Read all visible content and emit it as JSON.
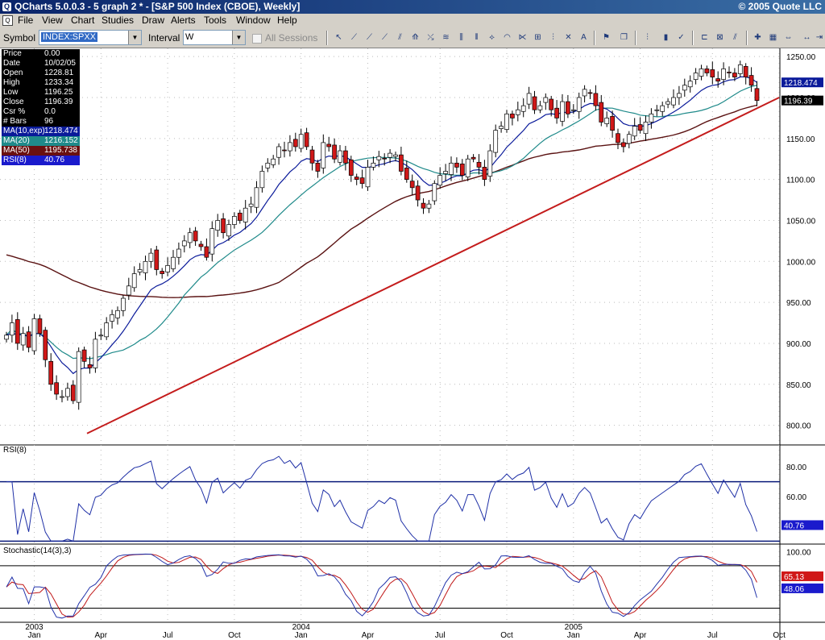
{
  "window": {
    "title": "QCharts 5.0.0.3 - 5 graph 2 * - [S&P 500 Index (CBOE), Weekly]",
    "copyright": "© 2005 Quote LLC"
  },
  "menu": [
    "File",
    "View",
    "Chart",
    "Studies",
    "Draw",
    "Alerts",
    "Tools",
    "Window",
    "Help"
  ],
  "toolbar": {
    "symbol_label": "Symbol",
    "symbol_value": "INDEX:SPXX",
    "interval_label": "Interval",
    "interval_value": "W",
    "all_sessions_label": "All Sessions"
  },
  "info_box": [
    {
      "k": "Price",
      "v": "0.00"
    },
    {
      "k": "Date",
      "v": "10/02/05"
    },
    {
      "k": "Open",
      "v": "1228.81"
    },
    {
      "k": "High",
      "v": "1233.34"
    },
    {
      "k": "Low",
      "v": "1196.25"
    },
    {
      "k": "Close",
      "v": "1196.39"
    },
    {
      "k": "Csr %",
      "v": "0.0"
    },
    {
      "k": "# Bars",
      "v": "96"
    },
    {
      "k": "MA(10,exp)",
      "v": "1218.474"
    },
    {
      "k": "MA(20)",
      "v": "1216.152"
    },
    {
      "k": "MA(50)",
      "v": "1195.738"
    },
    {
      "k": "RSI(8)",
      "v": "40.76"
    }
  ],
  "colors": {
    "up": "#ffffff",
    "down": "#d01818",
    "ma10": "#0a1a9a",
    "ma20": "#1f8a8a",
    "ma50": "#5a1212",
    "trend": "#c41c1c",
    "rsi": "#1e2fa6",
    "stoch_k": "#2233aa",
    "stoch_d": "#c01818",
    "level": "#0a1a7a"
  },
  "chart_data": [
    {
      "type": "candlestick",
      "title": "S&P 500 Index (CBOE), Weekly",
      "y_ticks": [
        800,
        850,
        900,
        950,
        1000,
        1050,
        1100,
        1150,
        1200,
        1250
      ],
      "ylim": [
        776,
        1260
      ],
      "x_labels": [
        {
          "m": "Jan",
          "y": "2003",
          "i": 5
        },
        {
          "m": "Apr",
          "y": "",
          "i": 17
        },
        {
          "m": "Jul",
          "y": "",
          "i": 29
        },
        {
          "m": "Oct",
          "y": "",
          "i": 41
        },
        {
          "m": "Jan",
          "y": "2004",
          "i": 53
        },
        {
          "m": "Apr",
          "y": "",
          "i": 65
        },
        {
          "m": "Jul",
          "y": "",
          "i": 78
        },
        {
          "m": "Oct",
          "y": "",
          "i": 90
        },
        {
          "m": "Jan",
          "y": "2005",
          "i": 102
        },
        {
          "m": "Apr",
          "y": "",
          "i": 114
        },
        {
          "m": "Jul",
          "y": "",
          "i": 127
        },
        {
          "m": "Oct",
          "y": "",
          "i": 139
        }
      ],
      "closes": [
        910,
        925,
        900,
        912,
        895,
        930,
        912,
        880,
        850,
        838,
        835,
        845,
        830,
        890,
        878,
        870,
        905,
        910,
        925,
        935,
        940,
        955,
        970,
        985,
        990,
        1000,
        1010,
        990,
        985,
        995,
        1005,
        1015,
        1025,
        1035,
        1025,
        1018,
        1005,
        1040,
        1050,
        1035,
        1045,
        1055,
        1050,
        1065,
        1070,
        1090,
        1110,
        1120,
        1125,
        1140,
        1135,
        1145,
        1140,
        1155,
        1140,
        1120,
        1110,
        1145,
        1140,
        1125,
        1135,
        1120,
        1105,
        1100,
        1095,
        1115,
        1120,
        1128,
        1125,
        1132,
        1130,
        1110,
        1100,
        1090,
        1075,
        1065,
        1070,
        1095,
        1105,
        1110,
        1120,
        1115,
        1105,
        1125,
        1125,
        1115,
        1100,
        1135,
        1160,
        1165,
        1180,
        1175,
        1185,
        1190,
        1205,
        1185,
        1190,
        1200,
        1185,
        1175,
        1195,
        1180,
        1185,
        1200,
        1210,
        1205,
        1190,
        1170,
        1175,
        1160,
        1145,
        1140,
        1155,
        1165,
        1160,
        1170,
        1180,
        1185,
        1190,
        1195,
        1200,
        1205,
        1215,
        1220,
        1230,
        1235,
        1230,
        1225,
        1220,
        1235,
        1230,
        1225,
        1240,
        1225,
        1215,
        1196.39
      ],
      "stats": {
        "open": 1228.81,
        "high": 1233.34,
        "low": 1196.25,
        "close": 1196.39,
        "ma10": 1218.474,
        "ma20": 1216.152,
        "ma50": 1195.738
      },
      "trendline": [
        [
          0,
          790
        ],
        [
          139,
          1200
        ]
      ],
      "price_labels": [
        "1218.474",
        "1196.39"
      ]
    },
    {
      "type": "line",
      "title": "RSI(8)",
      "y_ticks": [
        60,
        80
      ],
      "ylim": [
        28,
        92
      ],
      "levels": [
        70,
        30
      ],
      "last": "40.76"
    },
    {
      "type": "line",
      "title": "Stochastic(14(3),3)",
      "y_ticks": [
        100
      ],
      "ylim": [
        0,
        105
      ],
      "levels": [
        80,
        20
      ],
      "last_k": "65.13",
      "last_d": "48.06"
    }
  ]
}
